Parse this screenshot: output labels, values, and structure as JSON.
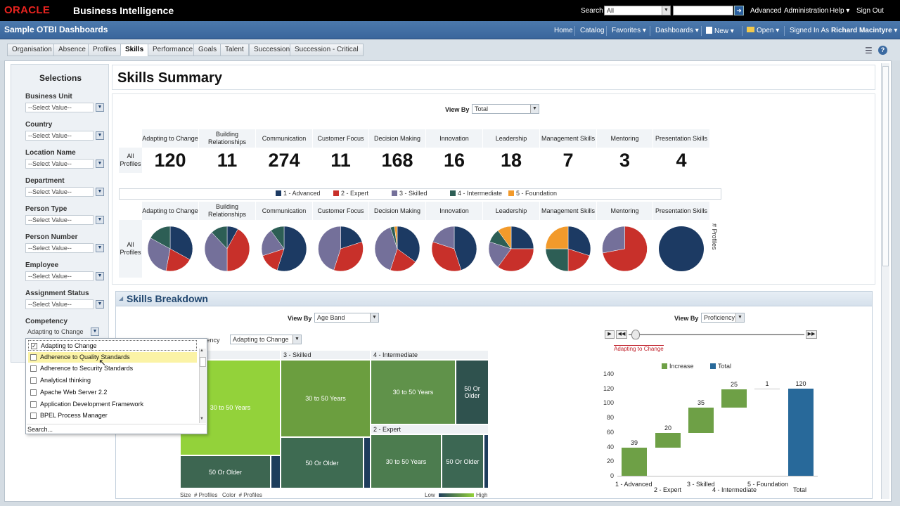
{
  "topbar": {
    "logo": "ORACLE",
    "product": "Business Intelligence",
    "search_label": "Search",
    "search_scope": "All",
    "search_value": "",
    "links": [
      "Advanced",
      "Administration",
      "Help ▾",
      "Sign Out"
    ]
  },
  "navbar": {
    "dashboard_title": "Sample OTBI Dashboards",
    "links": [
      "Home",
      "Catalog",
      "Favorites ▾",
      "Dashboards ▾",
      "New ▾",
      "Open ▾"
    ],
    "signed_in_label": "Signed In As",
    "user": "Richard Macintyre ▾"
  },
  "tabs": [
    "Organisation",
    "Absence",
    "Profiles",
    "Skills",
    "Performance",
    "Goals",
    "Talent",
    "Succession",
    "Succession - Critical"
  ],
  "active_tab": "Skills",
  "selections": {
    "title": "Selections",
    "fields": [
      {
        "label": "Business Unit",
        "value": "--Select Value--"
      },
      {
        "label": "Country",
        "value": "--Select Value--"
      },
      {
        "label": "Location Name",
        "value": "--Select Value--"
      },
      {
        "label": "Department",
        "value": "--Select Value--"
      },
      {
        "label": "Person Type",
        "value": "--Select Value--"
      },
      {
        "label": "Person Number",
        "value": "--Select Value--"
      },
      {
        "label": "Employee",
        "value": "--Select Value--"
      },
      {
        "label": "Assignment Status",
        "value": "--Select Value--"
      },
      {
        "label": "Competency",
        "value": "Adapting to Change"
      }
    ]
  },
  "popup": {
    "items": [
      {
        "label": "Adapting to Change",
        "checked": true
      },
      {
        "label": "Adherence to Quality Standards",
        "checked": false
      },
      {
        "label": "Adherence to Security Standards",
        "checked": false
      },
      {
        "label": "Analytical thinking",
        "checked": false
      },
      {
        "label": "Apache Web Server 2.2",
        "checked": false
      },
      {
        "label": "Application Development Framework",
        "checked": false
      },
      {
        "label": "BPEL Process Manager",
        "checked": false
      }
    ],
    "search_label": "Search..."
  },
  "summary": {
    "title": "Skills Summary",
    "view_by_label": "View By",
    "view_by_value": "Total",
    "row_label": "All Profiles",
    "skills": [
      {
        "name": "Adapting to Change",
        "count": "120"
      },
      {
        "name": "Building Relationships",
        "count": "11"
      },
      {
        "name": "Communication",
        "count": "274"
      },
      {
        "name": "Customer Focus",
        "count": "11"
      },
      {
        "name": "Decision Making",
        "count": "168"
      },
      {
        "name": "Innovation",
        "count": "16"
      },
      {
        "name": "Leadership",
        "count": "18"
      },
      {
        "name": "Management Skills",
        "count": "7"
      },
      {
        "name": "Mentoring",
        "count": "3"
      },
      {
        "name": "Presentation Skills",
        "count": "4"
      }
    ],
    "legend": [
      {
        "label": "1 - Advanced",
        "color": "#1c3a63"
      },
      {
        "label": "2 - Expert",
        "color": "#c8302a"
      },
      {
        "label": "3 - Skilled",
        "color": "#74709a"
      },
      {
        "label": "4 - Intermediate",
        "color": "#2d5e55"
      },
      {
        "label": "5 - Foundation",
        "color": "#f29a2b"
      }
    ],
    "pies": [
      [
        0.33,
        0.2,
        0.3,
        0.17,
        0.0
      ],
      [
        0.08,
        0.42,
        0.38,
        0.12,
        0.0
      ],
      [
        0.55,
        0.15,
        0.2,
        0.1,
        0.0
      ],
      [
        0.2,
        0.35,
        0.45,
        0.0,
        0.0
      ],
      [
        0.35,
        0.2,
        0.4,
        0.03,
        0.02
      ],
      [
        0.45,
        0.35,
        0.2,
        0.0,
        0.0
      ],
      [
        0.25,
        0.35,
        0.2,
        0.1,
        0.1
      ],
      [
        0.3,
        0.2,
        0.0,
        0.25,
        0.25
      ],
      [
        0.0,
        0.72,
        0.28,
        0.0,
        0.0
      ],
      [
        1.0,
        0.0,
        0.0,
        0.0,
        0.0
      ]
    ],
    "profiles_axis": "# Profiles"
  },
  "breakdown": {
    "title": "Skills Breakdown",
    "view_by_label": "View By",
    "view_by_value": "Age Band",
    "competency_label": "etency",
    "competency_value": "Adapting to Change",
    "treemap": {
      "headers": [
        "nced",
        "3 - Skilled",
        "4 - Intermediate",
        "2 - Expert"
      ],
      "cells": [
        "30 to 50 Years",
        "30 to 50 Years",
        "30 to 50 Years",
        "50 Or Older",
        "50 Or Older",
        "50 Or Older",
        "30 to 50 Years",
        "50 Or Older"
      ],
      "footer_left": "Size  # Profiles   Color  # Profiles",
      "low": "Low",
      "high": "High"
    },
    "waterfall": {
      "view_by_label": "View By",
      "view_by_value": "Proficiency",
      "slider_label": "Adapting to Change",
      "legend": [
        {
          "label": "Increase",
          "color": "#6ea046"
        },
        {
          "label": "Total",
          "color": "#28699a"
        }
      ],
      "y_ticks": [
        "140",
        "120",
        "100",
        "80",
        "60",
        "40",
        "20",
        "0"
      ],
      "ylim": [
        0,
        140
      ],
      "categories": [
        "1 - Advanced",
        "2 - Expert",
        "3 - Skilled",
        "4 - Intermediate",
        "5 - Foundation",
        "Total"
      ],
      "values": [
        39,
        20,
        35,
        25,
        1,
        120
      ],
      "value_labels": [
        "39",
        "20",
        "35",
        "25",
        "1",
        "120"
      ]
    }
  }
}
